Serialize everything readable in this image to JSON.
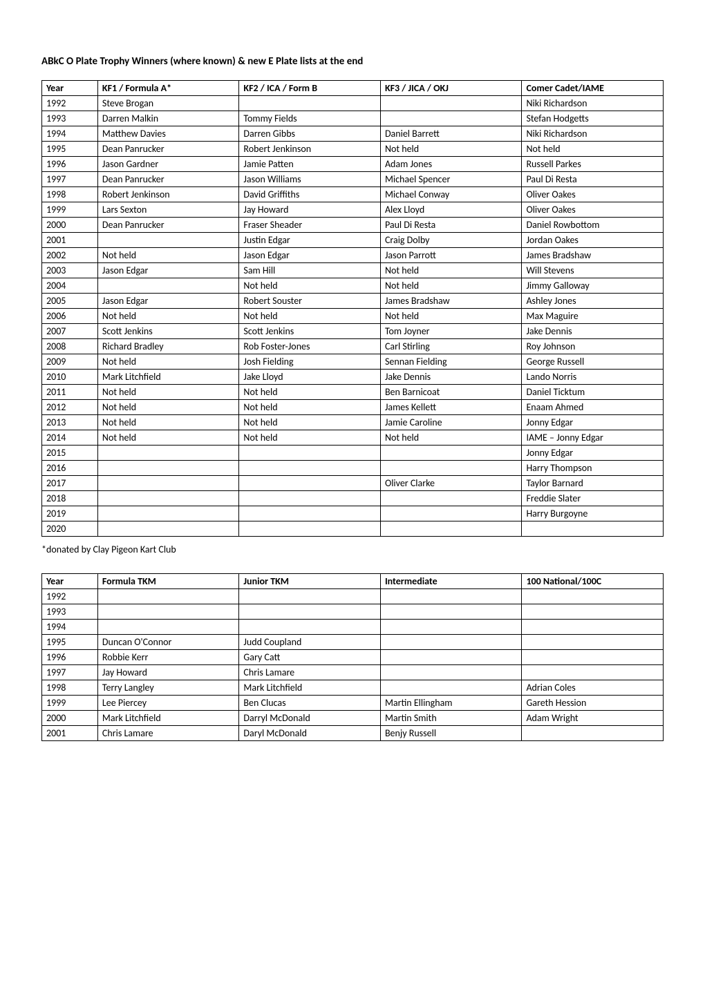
{
  "heading": "ABkC O Plate Trophy Winners (where known) & new E Plate lists at the end",
  "note": "*donated by Clay Pigeon Kart Club",
  "table1": {
    "headers": [
      "Year",
      "KF1 / Formula A*",
      "KF2 / ICA / Form B",
      "KF3 / JICA / OKJ",
      "Comer Cadet/IAME"
    ],
    "rows": [
      [
        "1992",
        "Steve Brogan",
        "",
        "",
        "Niki Richardson"
      ],
      [
        "1993",
        "Darren Malkin",
        "Tommy Fields",
        "",
        "Stefan Hodgetts"
      ],
      [
        "1994",
        "Matthew Davies",
        "Darren Gibbs",
        "Daniel Barrett",
        "Niki Richardson"
      ],
      [
        "1995",
        "Dean Panrucker",
        "Robert Jenkinson",
        "Not held",
        "Not held"
      ],
      [
        "1996",
        "Jason Gardner",
        "Jamie Patten",
        "Adam Jones",
        "Russell Parkes"
      ],
      [
        "1997",
        "Dean Panrucker",
        "Jason Williams",
        "Michael Spencer",
        "Paul Di Resta"
      ],
      [
        "1998",
        "Robert Jenkinson",
        "David Griffiths",
        "Michael Conway",
        "Oliver Oakes"
      ],
      [
        "1999",
        "Lars Sexton",
        "Jay Howard",
        "Alex Lloyd",
        "Oliver Oakes"
      ],
      [
        "2000",
        "Dean Panrucker",
        "Fraser Sheader",
        "Paul Di Resta",
        "Daniel Rowbottom"
      ],
      [
        "2001",
        "",
        "Justin Edgar",
        "Craig Dolby",
        "Jordan Oakes"
      ],
      [
        "2002",
        "Not held",
        "Jason Edgar",
        "Jason Parrott",
        "James Bradshaw"
      ],
      [
        "2003",
        "Jason Edgar",
        "Sam Hill",
        "Not held",
        "Will Stevens"
      ],
      [
        "2004",
        "",
        "Not held",
        "Not held",
        "Jimmy Galloway"
      ],
      [
        "2005",
        "Jason Edgar",
        "Robert Souster",
        "James Bradshaw",
        "Ashley Jones"
      ],
      [
        "2006",
        "Not held",
        "Not held",
        "Not held",
        "Max Maguire"
      ],
      [
        "2007",
        "Scott Jenkins",
        "Scott Jenkins",
        "Tom Joyner",
        "Jake Dennis"
      ],
      [
        "2008",
        "Richard Bradley",
        "Rob Foster-Jones",
        "Carl Stirling",
        "Roy Johnson"
      ],
      [
        "2009",
        "Not held",
        "Josh Fielding",
        "Sennan Fielding",
        "George Russell"
      ],
      [
        "2010",
        "Mark Litchfield",
        "Jake Lloyd",
        "Jake Dennis",
        "Lando Norris"
      ],
      [
        "2011",
        "Not held",
        "Not held",
        "Ben Barnicoat",
        "Daniel Ticktum"
      ],
      [
        "2012",
        "Not held",
        "Not held",
        "James Kellett",
        "Enaam Ahmed"
      ],
      [
        "2013",
        "Not held",
        "Not held",
        "Jamie Caroline",
        "Jonny Edgar"
      ],
      [
        "2014",
        "Not held",
        "Not held",
        "Not held",
        "IAME – Jonny Edgar"
      ],
      [
        "2015",
        "",
        "",
        "",
        "Jonny Edgar"
      ],
      [
        "2016",
        "",
        "",
        "",
        "Harry Thompson"
      ],
      [
        "2017",
        "",
        "",
        "Oliver Clarke",
        "Taylor Barnard"
      ],
      [
        "2018",
        "",
        "",
        "",
        "Freddie Slater"
      ],
      [
        "2019",
        "",
        "",
        "",
        "Harry Burgoyne"
      ],
      [
        "2020",
        "",
        "",
        "",
        ""
      ]
    ]
  },
  "table2": {
    "headers": [
      "Year",
      "Formula TKM",
      "Junior TKM",
      "Intermediate",
      "100 National/100C"
    ],
    "rows": [
      [
        "1992",
        "",
        "",
        "",
        ""
      ],
      [
        "1993",
        "",
        "",
        "",
        ""
      ],
      [
        "1994",
        "",
        "",
        "",
        ""
      ],
      [
        "1995",
        "Duncan O'Connor",
        "Judd Coupland",
        "",
        ""
      ],
      [
        "1996",
        "Robbie Kerr",
        "Gary Catt",
        "",
        ""
      ],
      [
        "1997",
        "Jay Howard",
        "Chris Lamare",
        "",
        ""
      ],
      [
        "1998",
        "Terry Langley",
        "Mark Litchfield",
        "",
        "Adrian Coles"
      ],
      [
        "1999",
        "Lee Piercey",
        "Ben Clucas",
        "Martin Ellingham",
        "Gareth Hession"
      ],
      [
        "2000",
        "Mark Litchfield",
        "Darryl McDonald",
        "Martin Smith",
        "Adam Wright"
      ],
      [
        "2001",
        "Chris Lamare",
        "Daryl McDonald",
        "Benjy Russell",
        ""
      ]
    ]
  }
}
